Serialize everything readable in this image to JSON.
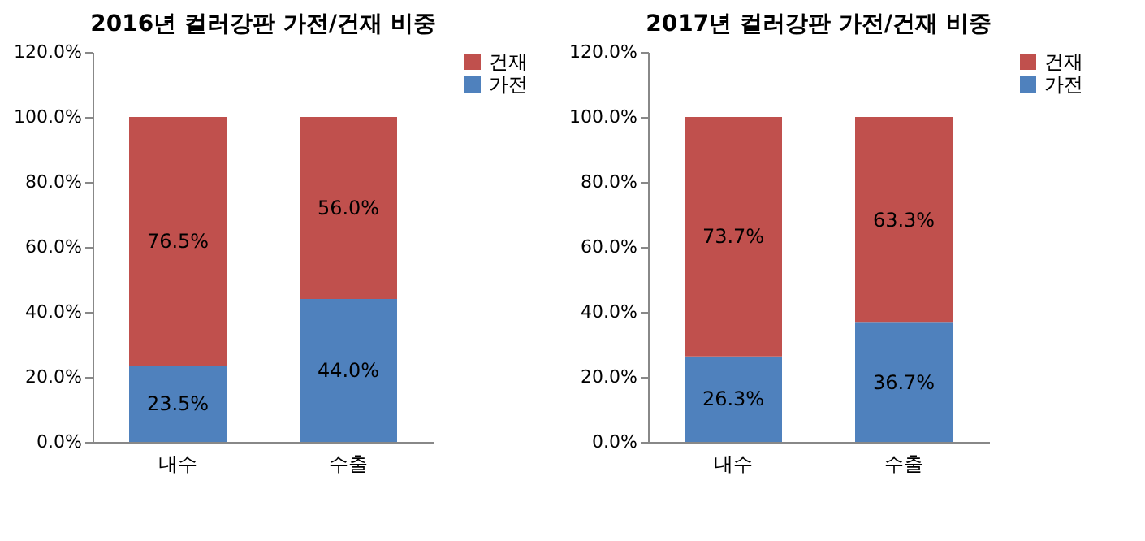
{
  "chart_data": [
    {
      "type": "bar",
      "title": "2016년 컬러강판 가전/건재 비중",
      "categories": [
        "내수",
        "수출"
      ],
      "stacked": true,
      "legend": "right",
      "ylim": [
        0,
        120
      ],
      "yticks": [
        {
          "value": 0,
          "label": "0.0%"
        },
        {
          "value": 20,
          "label": "20.0%"
        },
        {
          "value": 40,
          "label": "40.0%"
        },
        {
          "value": 60,
          "label": "60.0%"
        },
        {
          "value": 80,
          "label": "80.0%"
        },
        {
          "value": 100,
          "label": "100.0%"
        },
        {
          "value": 120,
          "label": "120.0%"
        }
      ],
      "series": [
        {
          "name": "가전",
          "color": "#4f81bd",
          "values": [
            23.5,
            44.0
          ],
          "value_labels": [
            "23.5%",
            "44.0%"
          ]
        },
        {
          "name": "건재",
          "color": "#c0504d",
          "values": [
            76.5,
            56.0
          ],
          "value_labels": [
            "76.5%",
            "56.0%"
          ]
        }
      ]
    },
    {
      "type": "bar",
      "title": "2017년 컬러강판 가전/건재 비중",
      "categories": [
        "내수",
        "수출"
      ],
      "stacked": true,
      "legend": "right",
      "ylim": [
        0,
        120
      ],
      "yticks": [
        {
          "value": 0,
          "label": "0.0%"
        },
        {
          "value": 20,
          "label": "20.0%"
        },
        {
          "value": 40,
          "label": "40.0%"
        },
        {
          "value": 60,
          "label": "60.0%"
        },
        {
          "value": 80,
          "label": "80.0%"
        },
        {
          "value": 100,
          "label": "100.0%"
        },
        {
          "value": 120,
          "label": "120.0%"
        }
      ],
      "series": [
        {
          "name": "가전",
          "color": "#4f81bd",
          "values": [
            26.3,
            36.7
          ],
          "value_labels": [
            "26.3%",
            "36.7%"
          ]
        },
        {
          "name": "건재",
          "color": "#c0504d",
          "values": [
            73.7,
            63.3
          ],
          "value_labels": [
            "73.7%",
            "63.3%"
          ]
        }
      ]
    }
  ]
}
